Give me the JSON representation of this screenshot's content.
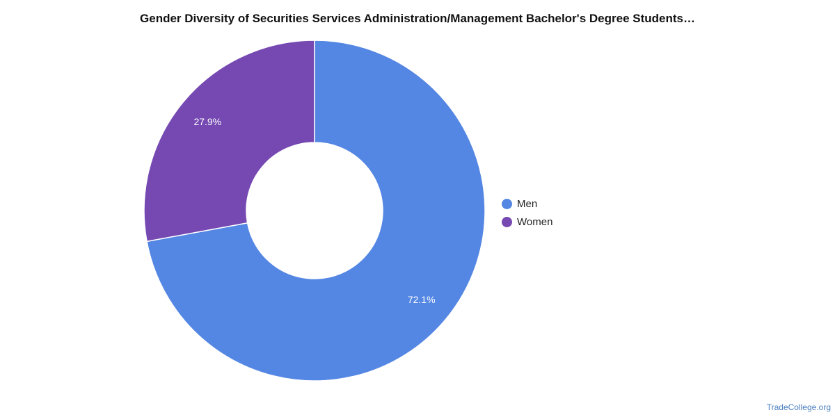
{
  "chart_data": {
    "type": "pie",
    "donut": true,
    "title": "Gender Diversity of Securities Services Administration/Management Bachelor's Degree Students…",
    "slices": [
      {
        "label": "Men",
        "value": 72.1,
        "display": "72.1%",
        "color": "#5486e3"
      },
      {
        "label": "Women",
        "value": 27.9,
        "display": "27.9%",
        "color": "#7549b1"
      }
    ],
    "legend": {
      "position": "right",
      "items": [
        {
          "label": "Men",
          "color": "#5486e3"
        },
        {
          "label": "Women",
          "color": "#7549b1"
        }
      ]
    }
  },
  "watermark": "TradeCollege.org"
}
